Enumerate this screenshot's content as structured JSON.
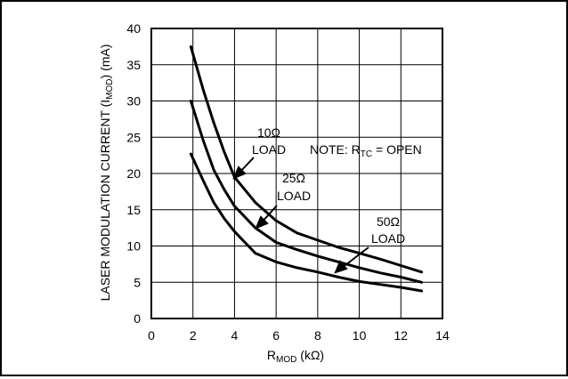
{
  "chart_data": {
    "type": "line",
    "title": "",
    "xlabel": {
      "main": "R",
      "sub": "MOD",
      "unit": " (kΩ)"
    },
    "ylabel": {
      "main": "LASER MODULATION  CURRENT (I",
      "sub": "MOD",
      "unit": ") (mA)"
    },
    "xlim": [
      0,
      14
    ],
    "ylim": [
      0,
      40
    ],
    "xticks": [
      0,
      2,
      4,
      6,
      8,
      10,
      12,
      14
    ],
    "yticks": [
      0,
      5,
      10,
      15,
      20,
      25,
      30,
      35,
      40
    ],
    "grid": true,
    "series": [
      {
        "name": "10Ω LOAD",
        "x": [
          1.9,
          2.5,
          3.0,
          3.5,
          4.0,
          5.0,
          6.0,
          7.0,
          8.0,
          9.0,
          10.0,
          11.0,
          12.0,
          13.0
        ],
        "y": [
          37.5,
          31.5,
          27.0,
          23.0,
          19.5,
          16.0,
          13.5,
          11.8,
          10.8,
          9.8,
          9.0,
          8.2,
          7.3,
          6.4
        ]
      },
      {
        "name": "25Ω LOAD",
        "x": [
          1.9,
          2.5,
          3.0,
          3.5,
          4.0,
          5.0,
          6.0,
          7.0,
          8.0,
          9.0,
          10.0,
          11.0,
          12.0,
          13.0
        ],
        "y": [
          30.0,
          24.5,
          20.5,
          17.8,
          15.5,
          12.5,
          10.5,
          9.5,
          8.6,
          7.8,
          7.0,
          6.3,
          5.7,
          5.0
        ]
      },
      {
        "name": "50Ω LOAD",
        "x": [
          1.9,
          2.5,
          3.0,
          3.5,
          4.0,
          4.5,
          5.0,
          6.0,
          7.0,
          8.0,
          9.0,
          10.0,
          11.0,
          12.0,
          13.0
        ],
        "y": [
          22.7,
          19.0,
          16.0,
          13.8,
          12.0,
          10.5,
          9.0,
          7.8,
          7.0,
          6.4,
          5.7,
          5.1,
          4.7,
          4.3,
          3.8
        ]
      }
    ],
    "annotations": [
      {
        "id": "10",
        "value": "10Ω",
        "load": "LOAD"
      },
      {
        "id": "25",
        "value": "25Ω",
        "load": "LOAD"
      },
      {
        "id": "50",
        "value": "50Ω",
        "load": "LOAD"
      }
    ],
    "note": {
      "prefix": "NOTE: R",
      "sub": "TC",
      "suffix": " = OPEN"
    }
  }
}
